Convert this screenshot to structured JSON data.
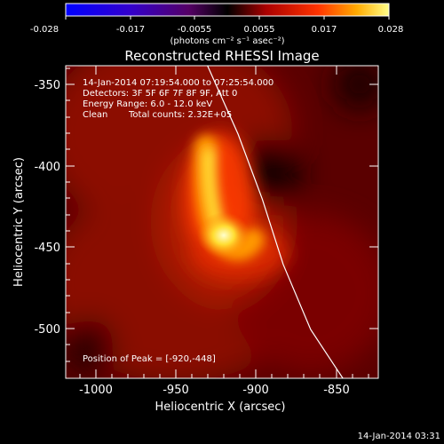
{
  "colorbar": {
    "ticks": [
      "-0.028",
      "-0.017",
      "-0.0055",
      "0.0055",
      "0.017",
      "0.028"
    ],
    "unit_label": "(photons cm⁻² s⁻¹ asec⁻²)",
    "range": [
      -0.028,
      0.028
    ]
  },
  "title": "Reconstructed RHESSI Image",
  "image_info": {
    "line1": "14-Jan-2014 07:19:54.000 to 07:25:54.000",
    "line2": "Detectors: 3F 5F 6F 7F 8F 9F, Att 0",
    "line3": "Energy Range: 6.0 - 12.0 keV",
    "line4_method": "Clean",
    "line4_counts": "Total counts: 2.32E+05",
    "peak": "Position of Peak = [-920,-448]"
  },
  "axes": {
    "xlabel": "Heliocentric X (arcsec)",
    "ylabel": "Heliocentric Y (arcsec)",
    "x_ticks": [
      "-1000",
      "-950",
      "-900",
      "-850"
    ],
    "y_ticks": [
      "-350",
      "-400",
      "-450",
      "-500"
    ]
  },
  "timestamp": "14-Jan-2014 03:31",
  "chart_data": {
    "type": "heatmap",
    "title": "Reconstructed RHESSI Image",
    "xlabel": "Heliocentric X (arcsec)",
    "ylabel": "Heliocentric Y (arcsec)",
    "xlim": [
      -1017,
      -823
    ],
    "ylim": [
      -530,
      -338
    ],
    "x_ticks": [
      -1000,
      -950,
      -900,
      -850
    ],
    "y_ticks": [
      -350,
      -400,
      -450,
      -500
    ],
    "colorbar_range": [
      -0.028,
      0.028
    ],
    "colormap": "red-yellow-white (positive), blue-purple (negative)",
    "peak_position": [
      -920,
      -448
    ],
    "limb_curve": [
      [
        -929,
        -338
      ],
      [
        -910,
        -380
      ],
      [
        -895,
        -420
      ],
      [
        -882,
        -460
      ],
      [
        -865,
        -500
      ],
      [
        -845,
        -530
      ]
    ]
  }
}
